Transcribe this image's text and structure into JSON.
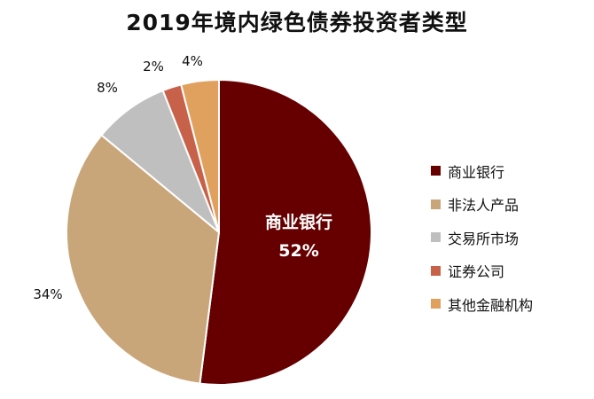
{
  "chart_data": {
    "type": "pie",
    "title": "2019年境内绿色债券投资者类型",
    "slices": [
      {
        "label": "商业银行",
        "value": 52,
        "value_label": "52%",
        "color": "#660000"
      },
      {
        "label": "非法人产品",
        "value": 34,
        "value_label": "34%",
        "color": "#c9a679"
      },
      {
        "label": "交易所市场",
        "value": 8,
        "value_label": "8%",
        "color": "#bfbfbf"
      },
      {
        "label": "证券公司",
        "value": 2,
        "value_label": "2%",
        "color": "#c8614a"
      },
      {
        "label": "其他金融机构",
        "value": 4,
        "value_label": "4%",
        "color": "#e0a15f"
      }
    ],
    "inner_label": {
      "text": "商业银行",
      "value_label": "52%"
    },
    "legend_position": "right"
  }
}
